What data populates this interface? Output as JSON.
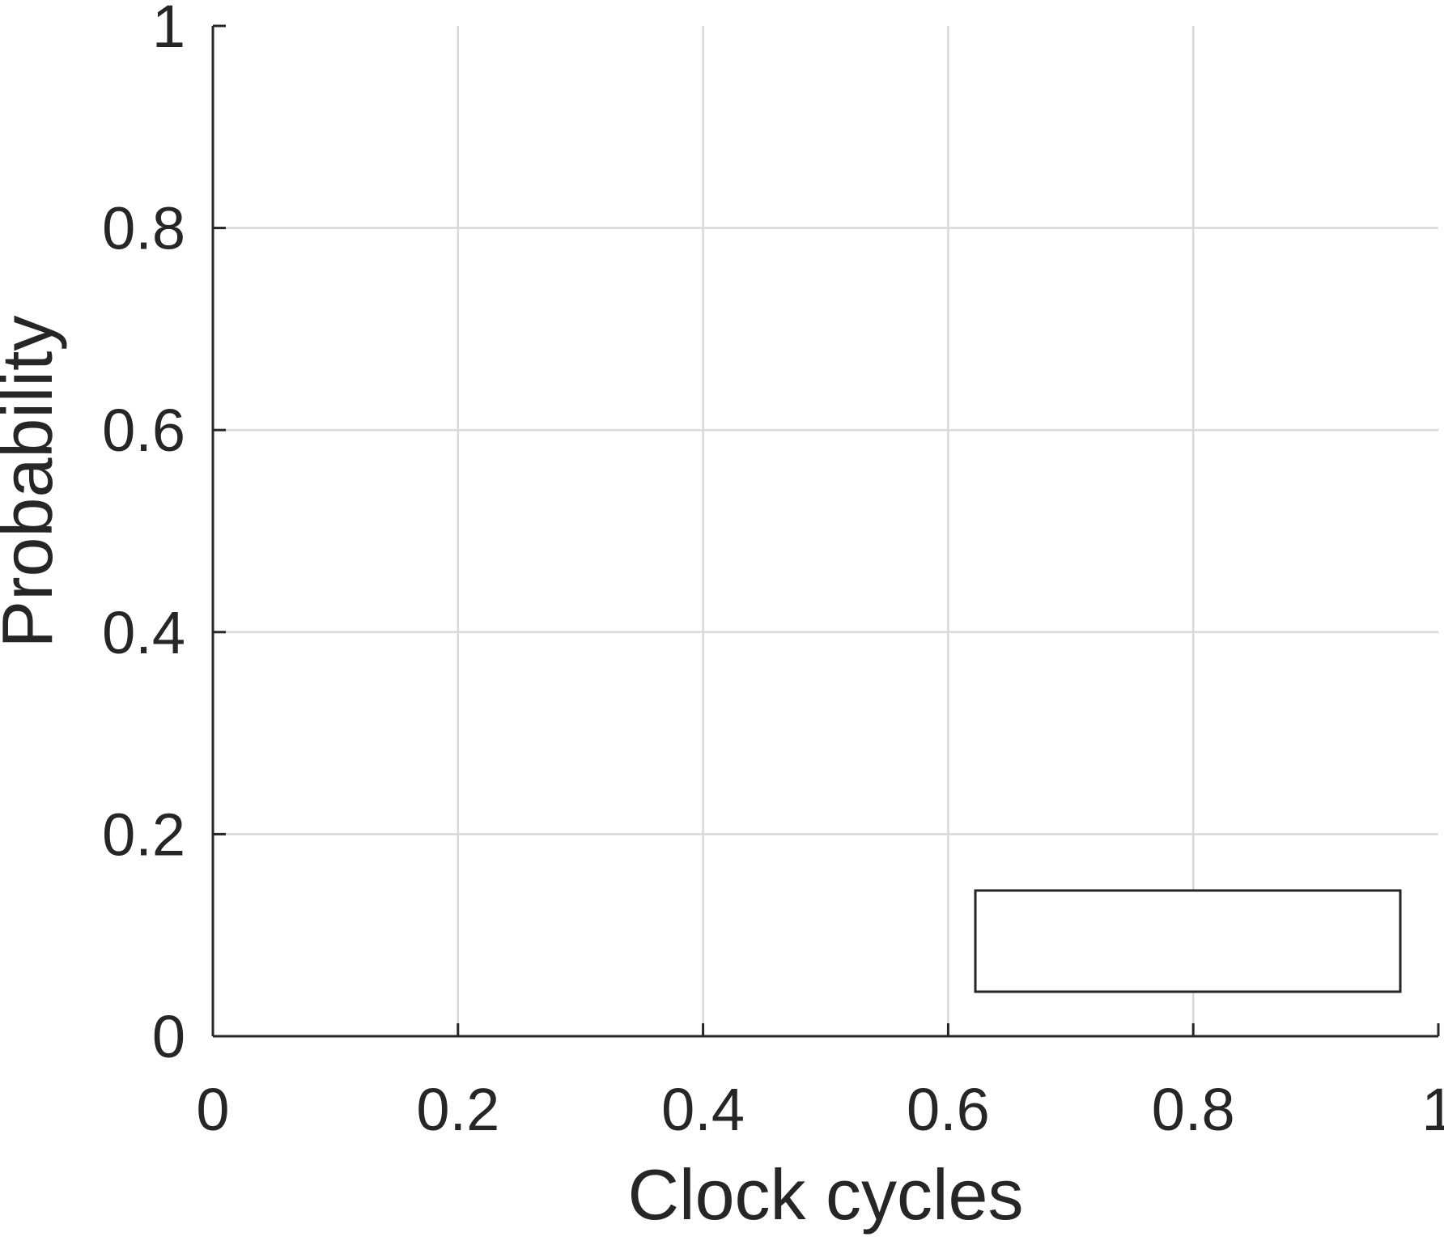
{
  "chart_data": {
    "type": "line",
    "title": "",
    "xlabel": "Clock cycles",
    "ylabel": "Probability",
    "xlim": [
      0,
      1
    ],
    "ylim": [
      0,
      1
    ],
    "x_ticks": [
      0,
      0.2,
      0.4,
      0.6,
      0.8,
      1
    ],
    "x_tick_labels": [
      "0",
      "0.2",
      "0.4",
      "0.6",
      "0.8",
      "1"
    ],
    "y_ticks": [
      0,
      0.2,
      0.4,
      0.6,
      0.8,
      1
    ],
    "y_tick_labels": [
      "0",
      "0.2",
      "0.4",
      "0.6",
      "0.8",
      "1"
    ],
    "grid": true,
    "legend": {
      "placement": "bottom-right",
      "entries": []
    },
    "series": [],
    "colors": {
      "axis": "#262626",
      "grid": "#d9d9d9",
      "background": "#ffffff"
    }
  }
}
